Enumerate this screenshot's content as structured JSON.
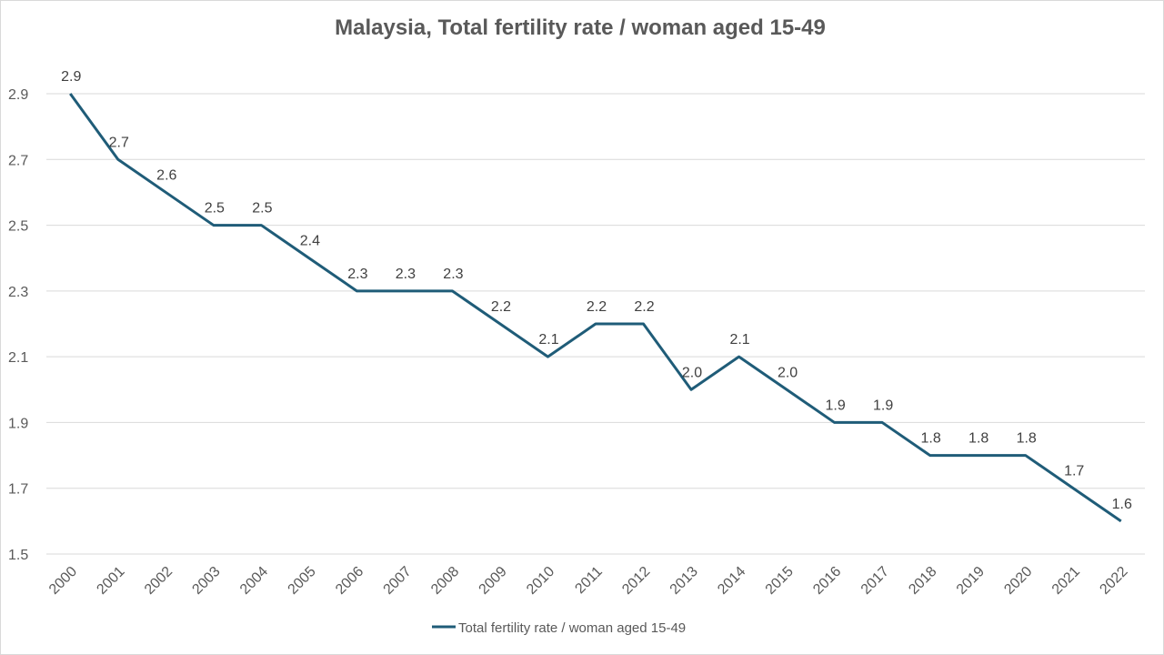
{
  "chart_data": {
    "type": "line",
    "title": "Malaysia, Total fertility rate / woman aged 15-49",
    "categories": [
      "2000",
      "2001",
      "2002",
      "2003",
      "2004",
      "2005",
      "2006",
      "2007",
      "2008",
      "2009",
      "2010",
      "2011",
      "2012",
      "2013",
      "2014",
      "2015",
      "2016",
      "2017",
      "2018",
      "2019",
      "2020",
      "2021",
      "2022"
    ],
    "series": [
      {
        "name": "Total fertility rate / woman aged 15-49",
        "values": [
          2.9,
          2.7,
          2.6,
          2.5,
          2.5,
          2.4,
          2.3,
          2.3,
          2.3,
          2.2,
          2.1,
          2.2,
          2.2,
          2.0,
          2.1,
          2.0,
          1.9,
          1.9,
          1.8,
          1.8,
          1.8,
          1.7,
          1.6
        ],
        "data_labels": [
          "2.9",
          "2.7",
          "2.6",
          "2.5",
          "2.5",
          "2.4",
          "2.3",
          "2.3",
          "2.3",
          "2.2",
          "2.1",
          "2.2",
          "2.2",
          "2.0",
          "2.1",
          "2.0",
          "1.9",
          "1.9",
          "1.8",
          "1.8",
          "1.8",
          "1.7",
          "1.6"
        ],
        "color": "#1f5c78"
      }
    ],
    "yticks": [
      "1.5",
      "1.7",
      "1.9",
      "2.1",
      "2.3",
      "2.5",
      "2.7",
      "2.9"
    ],
    "ylim": [
      1.5,
      2.9
    ],
    "xlabel": "",
    "ylabel": "",
    "grid": true,
    "legend_position": "bottom"
  }
}
